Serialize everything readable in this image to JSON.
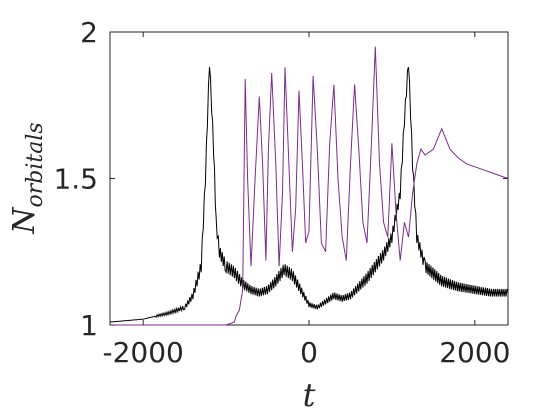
{
  "chart_data": {
    "type": "line",
    "xlabel": "t",
    "ylabel_main": "N",
    "ylabel_sub": "orbitals",
    "xlim": [
      -2400,
      2400
    ],
    "ylim": [
      1,
      2
    ],
    "xticks": [
      -2000,
      0,
      2000
    ],
    "xtick_labels": [
      "-2000",
      "0",
      "2000"
    ],
    "yticks": [
      1,
      1.5,
      2
    ],
    "ytick_labels": [
      "1",
      "1.5",
      "2"
    ],
    "grid": false,
    "legend": "none",
    "series": [
      {
        "color": "#000000",
        "oscillation": 0.02,
        "x": [
          -2400,
          -2000,
          -1700,
          -1500,
          -1400,
          -1300,
          -1250,
          -1200,
          -1150,
          -1120,
          -1080,
          -1000,
          -900,
          -800,
          -700,
          -600,
          -500,
          -400,
          -300,
          -200,
          -100,
          0,
          100,
          200,
          300,
          400,
          500,
          600,
          700,
          800,
          900,
          1000,
          1100,
          1150,
          1200,
          1250,
          1300,
          1400,
          1600,
          1800,
          2000,
          2200,
          2400
        ],
        "y": [
          1.01,
          1.02,
          1.04,
          1.06,
          1.1,
          1.2,
          1.5,
          1.9,
          1.6,
          1.35,
          1.25,
          1.2,
          1.18,
          1.14,
          1.12,
          1.11,
          1.12,
          1.15,
          1.19,
          1.17,
          1.12,
          1.07,
          1.06,
          1.08,
          1.1,
          1.09,
          1.1,
          1.13,
          1.16,
          1.2,
          1.24,
          1.3,
          1.45,
          1.7,
          1.9,
          1.55,
          1.3,
          1.2,
          1.15,
          1.13,
          1.12,
          1.11,
          1.11
        ]
      },
      {
        "color": "#7b2d8e",
        "x": [
          -2400,
          -1000,
          -900,
          -880,
          -840,
          -800,
          -770,
          -740,
          -700,
          -650,
          -600,
          -560,
          -520,
          -490,
          -450,
          -400,
          -360,
          -320,
          -290,
          -250,
          -200,
          -160,
          -120,
          -80,
          -40,
          0,
          50,
          100,
          150,
          200,
          250,
          300,
          350,
          400,
          450,
          500,
          550,
          600,
          650,
          700,
          750,
          800,
          850,
          900,
          950,
          1000,
          1050,
          1100,
          1150,
          1200,
          1250,
          1300,
          1350,
          1400,
          1500,
          1600,
          1700,
          1800,
          1900,
          2000,
          2100,
          2200,
          2300,
          2400
        ],
        "y": [
          1.0,
          1.0,
          1.01,
          1.03,
          1.05,
          1.12,
          1.84,
          1.5,
          1.2,
          1.5,
          1.78,
          1.55,
          1.22,
          1.6,
          1.86,
          1.55,
          1.2,
          1.45,
          1.88,
          1.6,
          1.25,
          1.4,
          1.8,
          1.55,
          1.28,
          1.32,
          1.85,
          1.6,
          1.28,
          1.25,
          1.62,
          1.82,
          1.5,
          1.3,
          1.22,
          1.55,
          1.82,
          1.6,
          1.35,
          1.28,
          1.6,
          1.95,
          1.55,
          1.35,
          1.3,
          1.62,
          1.38,
          1.22,
          1.35,
          1.3,
          1.45,
          1.55,
          1.6,
          1.58,
          1.6,
          1.67,
          1.6,
          1.57,
          1.55,
          1.54,
          1.53,
          1.52,
          1.51,
          1.5
        ]
      }
    ]
  }
}
